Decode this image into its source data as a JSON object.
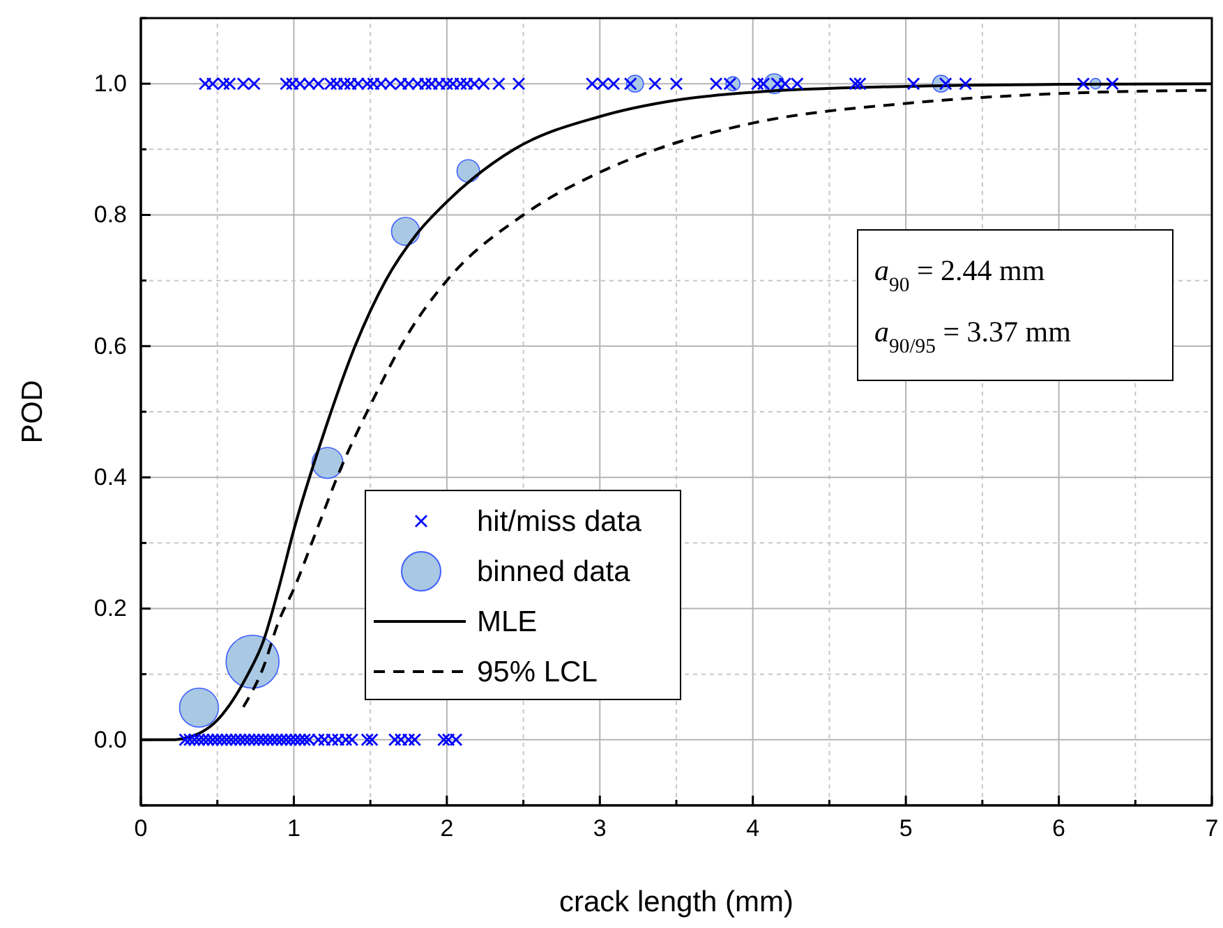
{
  "chart_data": {
    "type": "scatter",
    "xlabel": "crack length (mm)",
    "ylabel": "POD",
    "xlim": [
      0,
      7
    ],
    "ylim": [
      -0.1,
      1.1
    ],
    "xticks": [
      0,
      {
        "value": 0.5,
        "label": null
      },
      1,
      {
        "value": 1.5,
        "label": null
      },
      2,
      {
        "value": 2.5,
        "label": null
      },
      3,
      {
        "value": 3.5,
        "label": null
      },
      4,
      {
        "value": 4.5,
        "label": null
      },
      5,
      {
        "value": 5.5,
        "label": null
      },
      6,
      {
        "value": 6.5,
        "label": null
      },
      7
    ],
    "yticks": [
      {
        "value": -0.1,
        "label": null
      },
      {
        "value": 0,
        "label": "0.0"
      },
      {
        "value": 0.1,
        "label": null
      },
      {
        "value": 0.2,
        "label": "0.2"
      },
      {
        "value": 0.3,
        "label": null
      },
      {
        "value": 0.4,
        "label": "0.4"
      },
      {
        "value": 0.5,
        "label": null
      },
      {
        "value": 0.6,
        "label": "0.6"
      },
      {
        "value": 0.7,
        "label": null
      },
      {
        "value": 0.8,
        "label": "0.8"
      },
      {
        "value": 0.9,
        "label": null
      },
      {
        "value": 1.0,
        "label": "1.0"
      },
      {
        "value": 1.1,
        "label": null
      }
    ],
    "grid": true,
    "legend": "bottom",
    "annotations": [
      "a$_{90}$ = 2.44 mm",
      "a$_{90/95}$ = 3.37 mm"
    ],
    "series": [
      {
        "name": "hit/miss data",
        "type": "scatter",
        "marker": "cross",
        "color": "#0000ff",
        "x": [
          0.42,
          0.47,
          0.54,
          0.58,
          0.67,
          0.74,
          0.95,
          0.99,
          1.04,
          1.1,
          1.16,
          1.24,
          1.28,
          1.33,
          1.37,
          1.42,
          1.48,
          1.52,
          1.57,
          1.63,
          1.7,
          1.75,
          1.81,
          1.86,
          1.9,
          1.95,
          2.0,
          2.04,
          2.09,
          2.13,
          2.18,
          2.24,
          2.34,
          2.47,
          2.95,
          3.02,
          3.09,
          3.2,
          3.36,
          3.5,
          3.76,
          3.85,
          4.03,
          4.07,
          4.16,
          4.21,
          4.29,
          4.67,
          4.7,
          5.05,
          5.26,
          5.39,
          6.16,
          6.35,
          0.29,
          0.32,
          0.35,
          0.38,
          0.41,
          0.44,
          0.47,
          0.5,
          0.53,
          0.56,
          0.59,
          0.62,
          0.65,
          0.68,
          0.71,
          0.74,
          0.77,
          0.8,
          0.83,
          0.86,
          0.89,
          0.92,
          0.95,
          0.98,
          1.01,
          1.04,
          1.07,
          1.1,
          1.16,
          1.2,
          1.25,
          1.29,
          1.34,
          1.38,
          1.48,
          1.51,
          1.66,
          1.7,
          1.75,
          1.79,
          1.98,
          2.01,
          2.06
        ],
        "values": [
          1,
          1,
          1,
          1,
          1,
          1,
          1,
          1,
          1,
          1,
          1,
          1,
          1,
          1,
          1,
          1,
          1,
          1,
          1,
          1,
          1,
          1,
          1,
          1,
          1,
          1,
          1,
          1,
          1,
          1,
          1,
          1,
          1,
          1,
          1,
          1,
          1,
          1,
          1,
          1,
          1,
          1,
          1,
          1,
          1,
          1,
          1,
          1,
          1,
          1,
          1,
          1,
          1,
          1,
          0,
          0,
          0,
          0,
          0,
          0,
          0,
          0,
          0,
          0,
          0,
          0,
          0,
          0,
          0,
          0,
          0,
          0,
          0,
          0,
          0,
          0,
          0,
          0,
          0,
          0,
          0,
          0,
          0,
          0,
          0,
          0,
          0,
          0,
          0,
          0,
          0,
          0,
          0,
          0,
          0,
          0,
          0
        ]
      },
      {
        "name": "binned data",
        "type": "bubble",
        "color": "#a9c8e4",
        "x": [
          0.38,
          0.73,
          1.22,
          1.73,
          2.14,
          3.23,
          3.87,
          4.14,
          5.23,
          6.24
        ],
        "values": [
          0.049,
          0.119,
          0.422,
          0.775,
          0.867,
          1,
          1,
          1,
          1,
          1
        ],
        "sizes": [
          0.54,
          1,
          0.34,
          0.28,
          0.18,
          0.1,
          0.07,
          0.14,
          0.1,
          0.04
        ]
      },
      {
        "name": "MLE",
        "type": "line",
        "line_style": "solid",
        "color": "#000000",
        "x": [
          0,
          0.2,
          0.3,
          0.4,
          0.5,
          0.6,
          0.7,
          0.8,
          0.9,
          1.0,
          1.2,
          1.4,
          1.6,
          1.8,
          2.0,
          2.44,
          3,
          3.5,
          4,
          5,
          6,
          7
        ],
        "values": [
          0,
          0,
          0.003,
          0.012,
          0.03,
          0.06,
          0.1,
          0.15,
          0.23,
          0.32,
          0.47,
          0.6,
          0.7,
          0.77,
          0.82,
          0.9,
          0.95,
          0.975,
          0.987,
          0.996,
          0.999,
          1.0
        ]
      },
      {
        "name": "95% LCL",
        "type": "line",
        "line_style": "dashed",
        "color": "#000000",
        "x": [
          0.67,
          0.8,
          0.9,
          1.0,
          1.15,
          1.3,
          1.5,
          1.75,
          2,
          2.5,
          3,
          3.37,
          4,
          5,
          6,
          7
        ],
        "values": [
          0.05,
          0.11,
          0.18,
          0.23,
          0.32,
          0.41,
          0.51,
          0.62,
          0.7,
          0.8,
          0.865,
          0.9,
          0.94,
          0.97,
          0.985,
          0.99
        ]
      }
    ]
  }
}
